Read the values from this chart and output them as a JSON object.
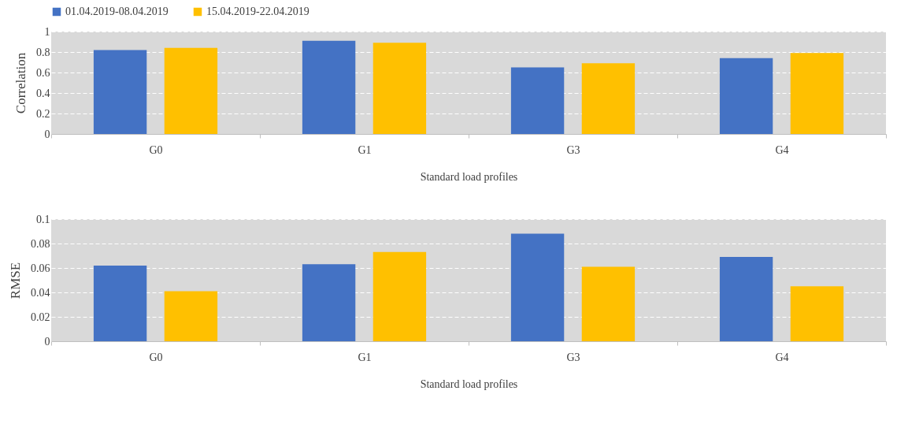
{
  "chart_data": [
    {
      "type": "bar",
      "xlabel": "Standard load profiles",
      "ylabel": "Correlation",
      "categories": [
        "G0",
        "G1",
        "G3",
        "G4"
      ],
      "series": [
        {
          "name": "01.04.2019-08.04.2019",
          "color": "#4472c4",
          "values": [
            0.82,
            0.91,
            0.65,
            0.74
          ]
        },
        {
          "name": "15.04.2019-22.04.2019",
          "color": "#ffc000",
          "values": [
            0.84,
            0.89,
            0.69,
            0.79
          ]
        }
      ],
      "ylim": [
        0,
        1
      ],
      "yticks": [
        0,
        0.2,
        0.4,
        0.6,
        0.8,
        1
      ],
      "grid": "y",
      "legend": "top"
    },
    {
      "type": "bar",
      "xlabel": "Standard load profiles",
      "ylabel": "RMSE",
      "categories": [
        "G0",
        "G1",
        "G3",
        "G4"
      ],
      "series": [
        {
          "color": "#4472c4",
          "values": [
            0.062,
            0.063,
            0.088,
            0.069
          ]
        },
        {
          "color": "#ffc000",
          "values": [
            0.041,
            0.073,
            0.061,
            0.045
          ]
        }
      ],
      "ylim": [
        0,
        0.1
      ],
      "yticks": [
        0,
        0.02,
        0.04,
        0.06,
        0.08,
        0.1
      ],
      "grid": "y",
      "legend": false
    }
  ]
}
